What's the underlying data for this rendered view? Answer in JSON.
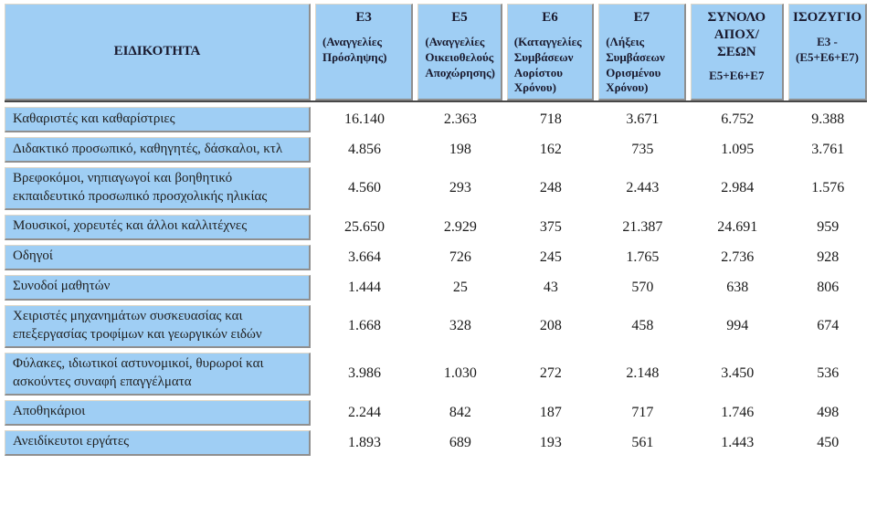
{
  "table": {
    "columns": {
      "specialty": {
        "title": "ΕΙΔΙΚΟΤΗΤΑ"
      },
      "e3": {
        "code": "Ε3",
        "desc": "(Αναγγελίες Πρόσληψης)"
      },
      "e5": {
        "code": "Ε5",
        "desc": "(Αναγγελίες Οικειοθελούς Αποχώρησης)"
      },
      "e6": {
        "code": "Ε6",
        "desc": "(Καταγγελίες Συμβάσεων Αορίστου Χρόνου)"
      },
      "e7": {
        "code": "Ε7",
        "desc": "(Λήξεις Συμβάσεων Ορισμένου Χρόνου)"
      },
      "total": {
        "code": "ΣΥΝΟΛΟ ΑΠΟΧ/ΣΕΩΝ",
        "desc": "Ε5+Ε6+Ε7"
      },
      "balance": {
        "code": "ΙΣΟΖΥΓΙΟ",
        "desc": "Ε3 - (Ε5+Ε6+Ε7)"
      }
    },
    "rows": [
      {
        "label": "Καθαριστές και καθαρίστριες",
        "e3": "16.140",
        "e5": "2.363",
        "e6": "718",
        "e7": "3.671",
        "total": "6.752",
        "balance": "9.388"
      },
      {
        "label": "Διδακτικό προσωπικό, καθηγητές, δάσκαλοι, κτλ",
        "e3": "4.856",
        "e5": "198",
        "e6": "162",
        "e7": "735",
        "total": "1.095",
        "balance": "3.761"
      },
      {
        "label": "Βρεφοκόμοι, νηπιαγωγοί και βοηθητικό εκπαιδευτικό προσωπικό προσχολικής ηλικίας",
        "e3": "4.560",
        "e5": "293",
        "e6": "248",
        "e7": "2.443",
        "total": "2.984",
        "balance": "1.576"
      },
      {
        "label": "Μουσικοί, χορευτές και άλλοι καλλιτέχνες",
        "e3": "25.650",
        "e5": "2.929",
        "e6": "375",
        "e7": "21.387",
        "total": "24.691",
        "balance": "959"
      },
      {
        "label": "Οδηγοί",
        "e3": "3.664",
        "e5": "726",
        "e6": "245",
        "e7": "1.765",
        "total": "2.736",
        "balance": "928"
      },
      {
        "label": "Συνοδοί μαθητών",
        "e3": "1.444",
        "e5": "25",
        "e6": "43",
        "e7": "570",
        "total": "638",
        "balance": "806"
      },
      {
        "label": "Χειριστές μηχανημάτων συσκευασίας και επεξεργασίας τροφίμων και γεωργικών ειδών",
        "e3": "1.668",
        "e5": "328",
        "e6": "208",
        "e7": "458",
        "total": "994",
        "balance": "674"
      },
      {
        "label": "Φύλακες, ιδιωτικοί αστυνομικοί, θυρωροί και ασκούντες συναφή επαγγέλματα",
        "e3": "3.986",
        "e5": "1.030",
        "e6": "272",
        "e7": "2.148",
        "total": "3.450",
        "balance": "536"
      },
      {
        "label": "Αποθηκάριοι",
        "e3": "2.244",
        "e5": "842",
        "e6": "187",
        "e7": "717",
        "total": "1.746",
        "balance": "498"
      },
      {
        "label": "Ανειδίκευτοι εργάτες",
        "e3": "1.893",
        "e5": "689",
        "e6": "193",
        "e7": "561",
        "total": "1.443",
        "balance": "450"
      }
    ],
    "colors": {
      "cell_blue": "#9FCEF4",
      "border_gray": "#8F8F8F",
      "header_rule": "#474747"
    }
  }
}
